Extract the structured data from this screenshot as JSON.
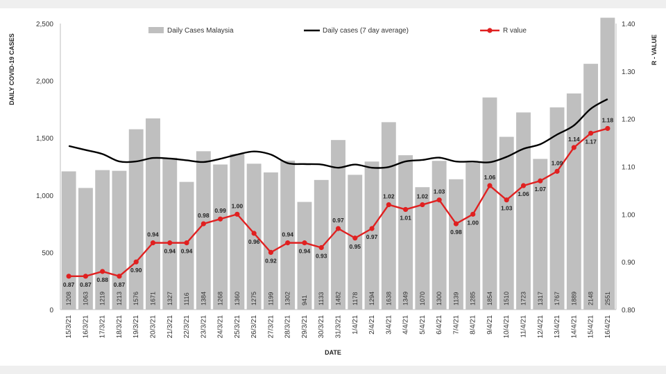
{
  "chart_data": {
    "type": "bar",
    "title": "",
    "xlabel": "DATE",
    "ylabel": "DAILY COVID-19 CASES",
    "y2label": "R - VALUE",
    "ylim": [
      0,
      2500
    ],
    "yticks": [
      "0",
      "500",
      "1,000",
      "1,500",
      "2,000",
      "2,500"
    ],
    "y2lim": [
      0.8,
      1.4
    ],
    "y2ticks": [
      "0.80",
      "0.90",
      "1.00",
      "1.10",
      "1.20",
      "1.30",
      "1.40"
    ],
    "grid": false,
    "legend_position": "top",
    "categories": [
      "15/3/21",
      "16/3/21",
      "17/3/21",
      "18/3/21",
      "19/3/21",
      "20/3/21",
      "21/3/21",
      "22/3/21",
      "23/3/21",
      "24/3/21",
      "25/3/21",
      "26/3/21",
      "27/3/21",
      "28/3/21",
      "29/3/21",
      "30/3/21",
      "31/3/21",
      "1/4/21",
      "2/4/21",
      "3/4/21",
      "4/4/21",
      "5/4/21",
      "6/4/21",
      "7/4/21",
      "8/4/21",
      "9/4/21",
      "10/4/21",
      "11/4/21",
      "12/4/21",
      "13/4/21",
      "14/4/21",
      "15/4/21",
      "16/4/21"
    ],
    "series": [
      {
        "name": "Daily Cases Malaysia",
        "type": "bar",
        "axis": "left",
        "color": "#bfbfbf",
        "values": [
          1208,
          1063,
          1219,
          1213,
          1576,
          1671,
          1327,
          1116,
          1384,
          1268,
          1360,
          1275,
          1199,
          1302,
          941,
          1133,
          1482,
          1178,
          1294,
          1638,
          1349,
          1070,
          1300,
          1139,
          1285,
          1854,
          1510,
          1723,
          1317,
          1767,
          1889,
          2148,
          2551
        ],
        "labels": [
          "1208",
          "1063",
          "1219",
          "1213",
          "1576",
          "1671",
          "1327",
          "1116",
          "1384",
          "1268",
          "1360",
          "1275",
          "1199",
          "1302",
          "941",
          "1133",
          "1482",
          "1178",
          "1294",
          "1638",
          "1349",
          "1070",
          "1300",
          "1139",
          "1285",
          "1854",
          "1510",
          "1723",
          "1317",
          "1767",
          "1889",
          "2148",
          "2551"
        ]
      },
      {
        "name": "Daily cases (7 day average)",
        "type": "line",
        "axis": "left",
        "color": "#000000",
        "values": [
          1430,
          1395,
          1360,
          1295,
          1295,
          1325,
          1320,
          1305,
          1290,
          1318,
          1355,
          1382,
          1355,
          1280,
          1272,
          1268,
          1240,
          1268,
          1240,
          1246,
          1295,
          1308,
          1328,
          1294,
          1294,
          1288,
          1335,
          1405,
          1445,
          1530,
          1610,
          1755,
          1840
        ]
      },
      {
        "name": "R value",
        "type": "line",
        "axis": "right",
        "color": "#e02020",
        "values": [
          0.87,
          0.87,
          0.88,
          0.87,
          0.9,
          0.94,
          0.94,
          0.94,
          0.98,
          0.99,
          1.0,
          0.96,
          0.92,
          0.94,
          0.94,
          0.93,
          0.97,
          0.95,
          0.97,
          1.02,
          1.01,
          1.02,
          1.03,
          0.98,
          1.0,
          1.06,
          1.03,
          1.06,
          1.07,
          1.09,
          1.14,
          1.17,
          1.18
        ],
        "labels": [
          "0.87",
          "0.87",
          "0.88",
          "0.87",
          "0.90",
          "0.94",
          "0.94",
          "0.94",
          "0.98",
          "0.99",
          "1.00",
          "0.96",
          "0.92",
          "0.94",
          "0.94",
          "0.93",
          "0.97",
          "0.95",
          "0.97",
          "1.02",
          "1.01",
          "1.02",
          "1.03",
          "0.98",
          "1.00",
          "1.06",
          "1.03",
          "1.06",
          "1.07",
          "1.09",
          "1.14",
          "1.17",
          "1.18"
        ],
        "label_below": [
          true,
          true,
          true,
          true,
          true,
          false,
          true,
          true,
          false,
          false,
          false,
          true,
          true,
          false,
          true,
          true,
          false,
          true,
          true,
          false,
          true,
          false,
          false,
          true,
          true,
          false,
          true,
          true,
          true,
          false,
          false,
          true,
          false
        ]
      }
    ]
  }
}
